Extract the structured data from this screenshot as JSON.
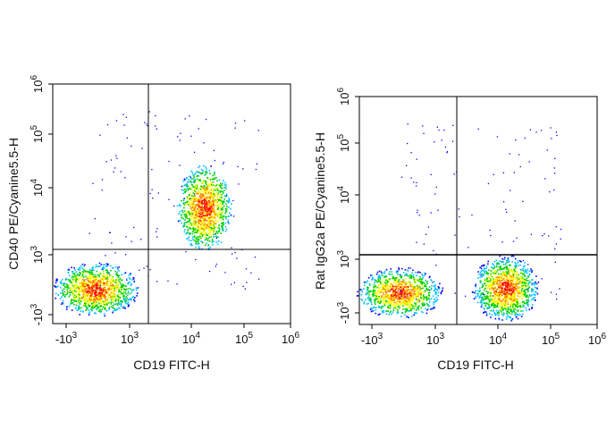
{
  "chart_data": [
    {
      "type": "scatter",
      "style": "flow-cytometry pseudocolor density plot",
      "xlabel": "CD19 FITC-H",
      "ylabel": "CD40 PE/Cyanine5.5-H",
      "x_ticks": [
        "-10^3",
        "10^3",
        "10^4",
        "10^5",
        "10^6"
      ],
      "y_ticks": [
        "-10^3",
        "10^3",
        "10^4",
        "10^5",
        "10^6"
      ],
      "xlim": [
        "-10^3",
        "10^6"
      ],
      "ylim": [
        "-10^3",
        "10^6"
      ],
      "gate_x": 2000,
      "gate_y": 1100,
      "populations": [
        {
          "name": "",
          "x_center": 200,
          "y_center": 0,
          "density": "high"
        },
        {
          "name": "",
          "x_center": 15000,
          "y_center": 5000,
          "density": "high"
        }
      ]
    },
    {
      "type": "scatter",
      "style": "flow-cytometry pseudocolor density plot",
      "xlabel": "CD19 FITC-H",
      "ylabel": "Rat IgG2a PE/Cyanine5.5-H",
      "x_ticks": [
        "-10^3",
        "10^3",
        "10^4",
        "10^5",
        "10^6"
      ],
      "y_ticks": [
        "-10^3",
        "10^3",
        "10^4",
        "10^5",
        "10^6"
      ],
      "xlim": [
        "-10^3",
        "10^6"
      ],
      "ylim": [
        "-10^3",
        "10^6"
      ],
      "gate_x": 2000,
      "gate_y": 1100,
      "populations": [
        {
          "name": "",
          "x_center": 200,
          "y_center": 0,
          "density": "high"
        },
        {
          "name": "",
          "x_center": 15000,
          "y_center": 0,
          "density": "high"
        }
      ]
    }
  ],
  "colors": {
    "density_low": "#0000ff",
    "density_mid": "#00d000",
    "density_high_1": "#ffff00",
    "density_high_2": "#ff0000",
    "axis": "#000000"
  }
}
